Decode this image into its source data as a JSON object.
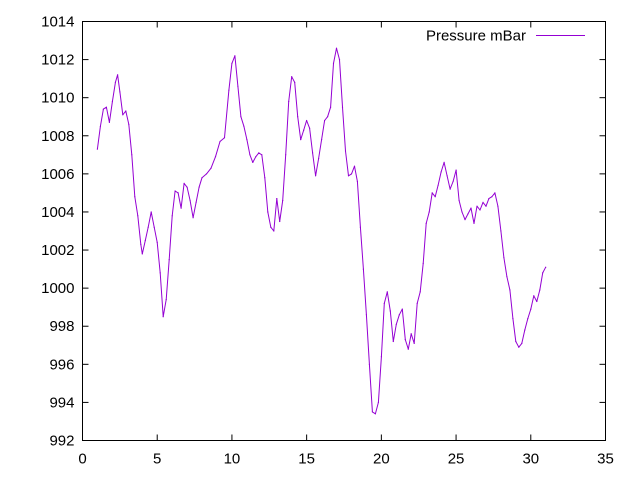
{
  "chart_data": {
    "type": "line",
    "xlim": [
      0,
      35
    ],
    "ylim": [
      992,
      1014
    ],
    "x_ticks": [
      0,
      5,
      10,
      15,
      20,
      25,
      30,
      35
    ],
    "y_ticks": [
      992,
      994,
      996,
      998,
      1000,
      1002,
      1004,
      1006,
      1008,
      1010,
      1012,
      1014
    ],
    "grid": false,
    "legend_position": "top-right",
    "series": [
      {
        "name": "Pressure mBar",
        "color": "#9400d3",
        "points": [
          [
            1.0,
            1007.3
          ],
          [
            1.2,
            1008.5
          ],
          [
            1.4,
            1009.4
          ],
          [
            1.6,
            1009.5
          ],
          [
            1.8,
            1008.7
          ],
          [
            2.0,
            1009.8
          ],
          [
            2.2,
            1010.8
          ],
          [
            2.35,
            1011.2
          ],
          [
            2.5,
            1010.3
          ],
          [
            2.7,
            1009.1
          ],
          [
            2.9,
            1009.3
          ],
          [
            3.1,
            1008.6
          ],
          [
            3.3,
            1007.0
          ],
          [
            3.5,
            1004.8
          ],
          [
            3.7,
            1003.8
          ],
          [
            3.9,
            1002.3
          ],
          [
            4.0,
            1001.8
          ],
          [
            4.2,
            1002.5
          ],
          [
            4.4,
            1003.2
          ],
          [
            4.6,
            1004.0
          ],
          [
            4.8,
            1003.2
          ],
          [
            5.0,
            1002.4
          ],
          [
            5.2,
            1000.8
          ],
          [
            5.4,
            998.5
          ],
          [
            5.6,
            999.4
          ],
          [
            5.8,
            1001.5
          ],
          [
            6.0,
            1003.8
          ],
          [
            6.2,
            1005.1
          ],
          [
            6.4,
            1005.0
          ],
          [
            6.6,
            1004.2
          ],
          [
            6.8,
            1005.5
          ],
          [
            7.0,
            1005.3
          ],
          [
            7.2,
            1004.6
          ],
          [
            7.4,
            1003.7
          ],
          [
            7.6,
            1004.5
          ],
          [
            7.8,
            1005.3
          ],
          [
            8.0,
            1005.8
          ],
          [
            8.3,
            1006.0
          ],
          [
            8.6,
            1006.3
          ],
          [
            8.9,
            1006.9
          ],
          [
            9.2,
            1007.7
          ],
          [
            9.5,
            1007.9
          ],
          [
            9.8,
            1010.4
          ],
          [
            10.0,
            1011.8
          ],
          [
            10.2,
            1012.2
          ],
          [
            10.4,
            1010.6
          ],
          [
            10.6,
            1009.0
          ],
          [
            10.8,
            1008.5
          ],
          [
            11.0,
            1007.8
          ],
          [
            11.2,
            1007.0
          ],
          [
            11.4,
            1006.6
          ],
          [
            11.6,
            1006.9
          ],
          [
            11.8,
            1007.1
          ],
          [
            12.0,
            1007.0
          ],
          [
            12.2,
            1005.8
          ],
          [
            12.4,
            1004.0
          ],
          [
            12.6,
            1003.2
          ],
          [
            12.8,
            1003.0
          ],
          [
            13.0,
            1004.7
          ],
          [
            13.2,
            1003.5
          ],
          [
            13.4,
            1004.6
          ],
          [
            13.6,
            1007.0
          ],
          [
            13.8,
            1009.8
          ],
          [
            14.0,
            1011.1
          ],
          [
            14.2,
            1010.8
          ],
          [
            14.4,
            1009.0
          ],
          [
            14.6,
            1007.8
          ],
          [
            14.8,
            1008.3
          ],
          [
            15.0,
            1008.8
          ],
          [
            15.2,
            1008.4
          ],
          [
            15.4,
            1007.1
          ],
          [
            15.6,
            1005.9
          ],
          [
            15.8,
            1006.8
          ],
          [
            16.0,
            1007.8
          ],
          [
            16.2,
            1008.8
          ],
          [
            16.4,
            1009.0
          ],
          [
            16.6,
            1009.5
          ],
          [
            16.8,
            1011.8
          ],
          [
            17.0,
            1012.6
          ],
          [
            17.2,
            1012.0
          ],
          [
            17.4,
            1009.5
          ],
          [
            17.6,
            1007.2
          ],
          [
            17.8,
            1005.9
          ],
          [
            18.0,
            1006.0
          ],
          [
            18.2,
            1006.4
          ],
          [
            18.4,
            1005.6
          ],
          [
            18.6,
            1003.2
          ],
          [
            18.8,
            1001.0
          ],
          [
            19.0,
            998.6
          ],
          [
            19.2,
            996.0
          ],
          [
            19.4,
            993.5
          ],
          [
            19.6,
            993.4
          ],
          [
            19.8,
            994.0
          ],
          [
            20.0,
            996.4
          ],
          [
            20.2,
            999.2
          ],
          [
            20.4,
            999.8
          ],
          [
            20.6,
            998.8
          ],
          [
            20.8,
            997.2
          ],
          [
            21.0,
            998.1
          ],
          [
            21.2,
            998.6
          ],
          [
            21.4,
            998.9
          ],
          [
            21.6,
            997.3
          ],
          [
            21.8,
            996.8
          ],
          [
            22.0,
            997.6
          ],
          [
            22.2,
            997.1
          ],
          [
            22.4,
            999.2
          ],
          [
            22.6,
            999.8
          ],
          [
            22.8,
            1001.3
          ],
          [
            23.0,
            1003.4
          ],
          [
            23.2,
            1004.0
          ],
          [
            23.4,
            1005.0
          ],
          [
            23.6,
            1004.8
          ],
          [
            23.8,
            1005.4
          ],
          [
            24.0,
            1006.1
          ],
          [
            24.2,
            1006.6
          ],
          [
            24.4,
            1005.9
          ],
          [
            24.6,
            1005.2
          ],
          [
            24.8,
            1005.6
          ],
          [
            25.0,
            1006.2
          ],
          [
            25.2,
            1004.6
          ],
          [
            25.4,
            1004.0
          ],
          [
            25.6,
            1003.6
          ],
          [
            25.8,
            1003.9
          ],
          [
            26.0,
            1004.2
          ],
          [
            26.2,
            1003.4
          ],
          [
            26.4,
            1004.3
          ],
          [
            26.6,
            1004.1
          ],
          [
            26.8,
            1004.5
          ],
          [
            27.0,
            1004.3
          ],
          [
            27.2,
            1004.7
          ],
          [
            27.4,
            1004.8
          ],
          [
            27.6,
            1005.0
          ],
          [
            27.8,
            1004.3
          ],
          [
            28.0,
            1003.0
          ],
          [
            28.2,
            1001.6
          ],
          [
            28.4,
            1000.6
          ],
          [
            28.6,
            999.9
          ],
          [
            28.8,
            998.4
          ],
          [
            29.0,
            997.2
          ],
          [
            29.2,
            996.9
          ],
          [
            29.4,
            997.1
          ],
          [
            29.6,
            997.8
          ],
          [
            29.8,
            998.4
          ],
          [
            30.0,
            998.9
          ],
          [
            30.2,
            999.6
          ],
          [
            30.4,
            999.3
          ],
          [
            30.6,
            999.9
          ],
          [
            30.8,
            1000.8
          ],
          [
            31.0,
            1001.1
          ]
        ]
      }
    ]
  }
}
